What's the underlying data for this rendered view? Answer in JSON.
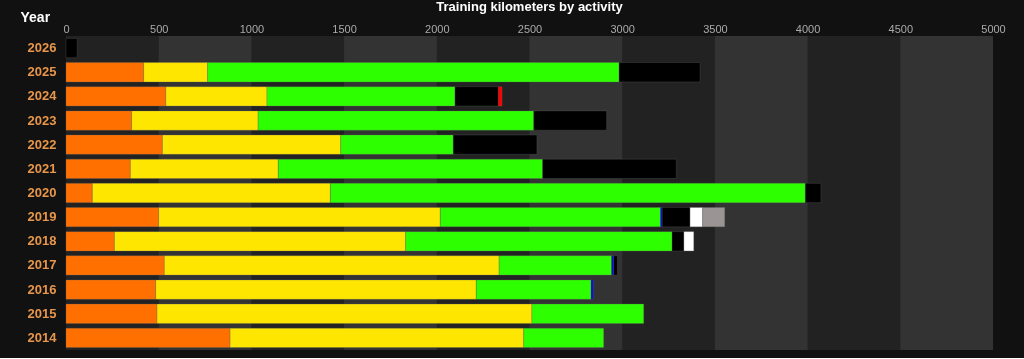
{
  "chart_data": {
    "type": "bar",
    "orientation": "horizontal",
    "stacked": true,
    "title": "Training kilometers by activity",
    "ylabel": "Year",
    "categories": [
      "2026",
      "2025",
      "2024",
      "2023",
      "2022",
      "2021",
      "2020",
      "2019",
      "2018",
      "2017",
      "2016",
      "2015",
      "2014"
    ],
    "series": [
      {
        "color": "#ff7000",
        "values": [
          null,
          419,
          539,
          354,
          520,
          347,
          142,
          500,
          261,
          530,
          484,
          491,
          885
        ]
      },
      {
        "color": "#ffe600",
        "values": [
          null,
          345,
          545,
          682,
          962,
          798,
          1284,
          1519,
          1571,
          1806,
          1729,
          2022,
          1584
        ]
      },
      {
        "color": "#2eff00",
        "values": [
          null,
          2219,
          1014,
          1487,
          607,
          1426,
          2562,
          1188,
          1437,
          607,
          619,
          603,
          431
        ]
      },
      {
        "color": "#0000ff",
        "values": [
          null,
          null,
          null,
          null,
          null,
          null,
          null,
          9,
          null,
          11,
          11,
          null,
          null
        ]
      },
      {
        "color": "#000000",
        "values": [
          60,
          437,
          234,
          393,
          451,
          721,
          84,
          150,
          64,
          20,
          null,
          null,
          null
        ]
      },
      {
        "color": "#ffffff",
        "values": [
          null,
          null,
          null,
          null,
          null,
          null,
          null,
          68,
          53,
          null,
          null,
          null,
          null
        ]
      },
      {
        "color": "#9a9494",
        "values": [
          null,
          null,
          null,
          null,
          null,
          null,
          null,
          119,
          null,
          null,
          null,
          null,
          null
        ]
      },
      {
        "color": "#ff0000",
        "values": [
          null,
          null,
          20,
          null,
          null,
          null,
          null,
          null,
          null,
          null,
          null,
          null,
          null
        ]
      }
    ],
    "xlim": [
      0,
      5000
    ],
    "xticks": [
      0,
      500,
      1000,
      1500,
      2000,
      2500,
      3000,
      3500,
      4000,
      4500,
      5000
    ],
    "bands": [
      {
        "axis": "x",
        "from": 500,
        "to": 1000,
        "color": "#333333"
      },
      {
        "axis": "x",
        "from": 1500,
        "to": 2000,
        "color": "#333333"
      },
      {
        "axis": "x",
        "from": 2500,
        "to": 3000,
        "color": "#333333"
      },
      {
        "axis": "x",
        "from": 3500,
        "to": 4000,
        "color": "#333333"
      },
      {
        "axis": "x",
        "from": 4500,
        "to": 5000,
        "color": "#333333"
      }
    ],
    "grid": false,
    "legend": false
  }
}
